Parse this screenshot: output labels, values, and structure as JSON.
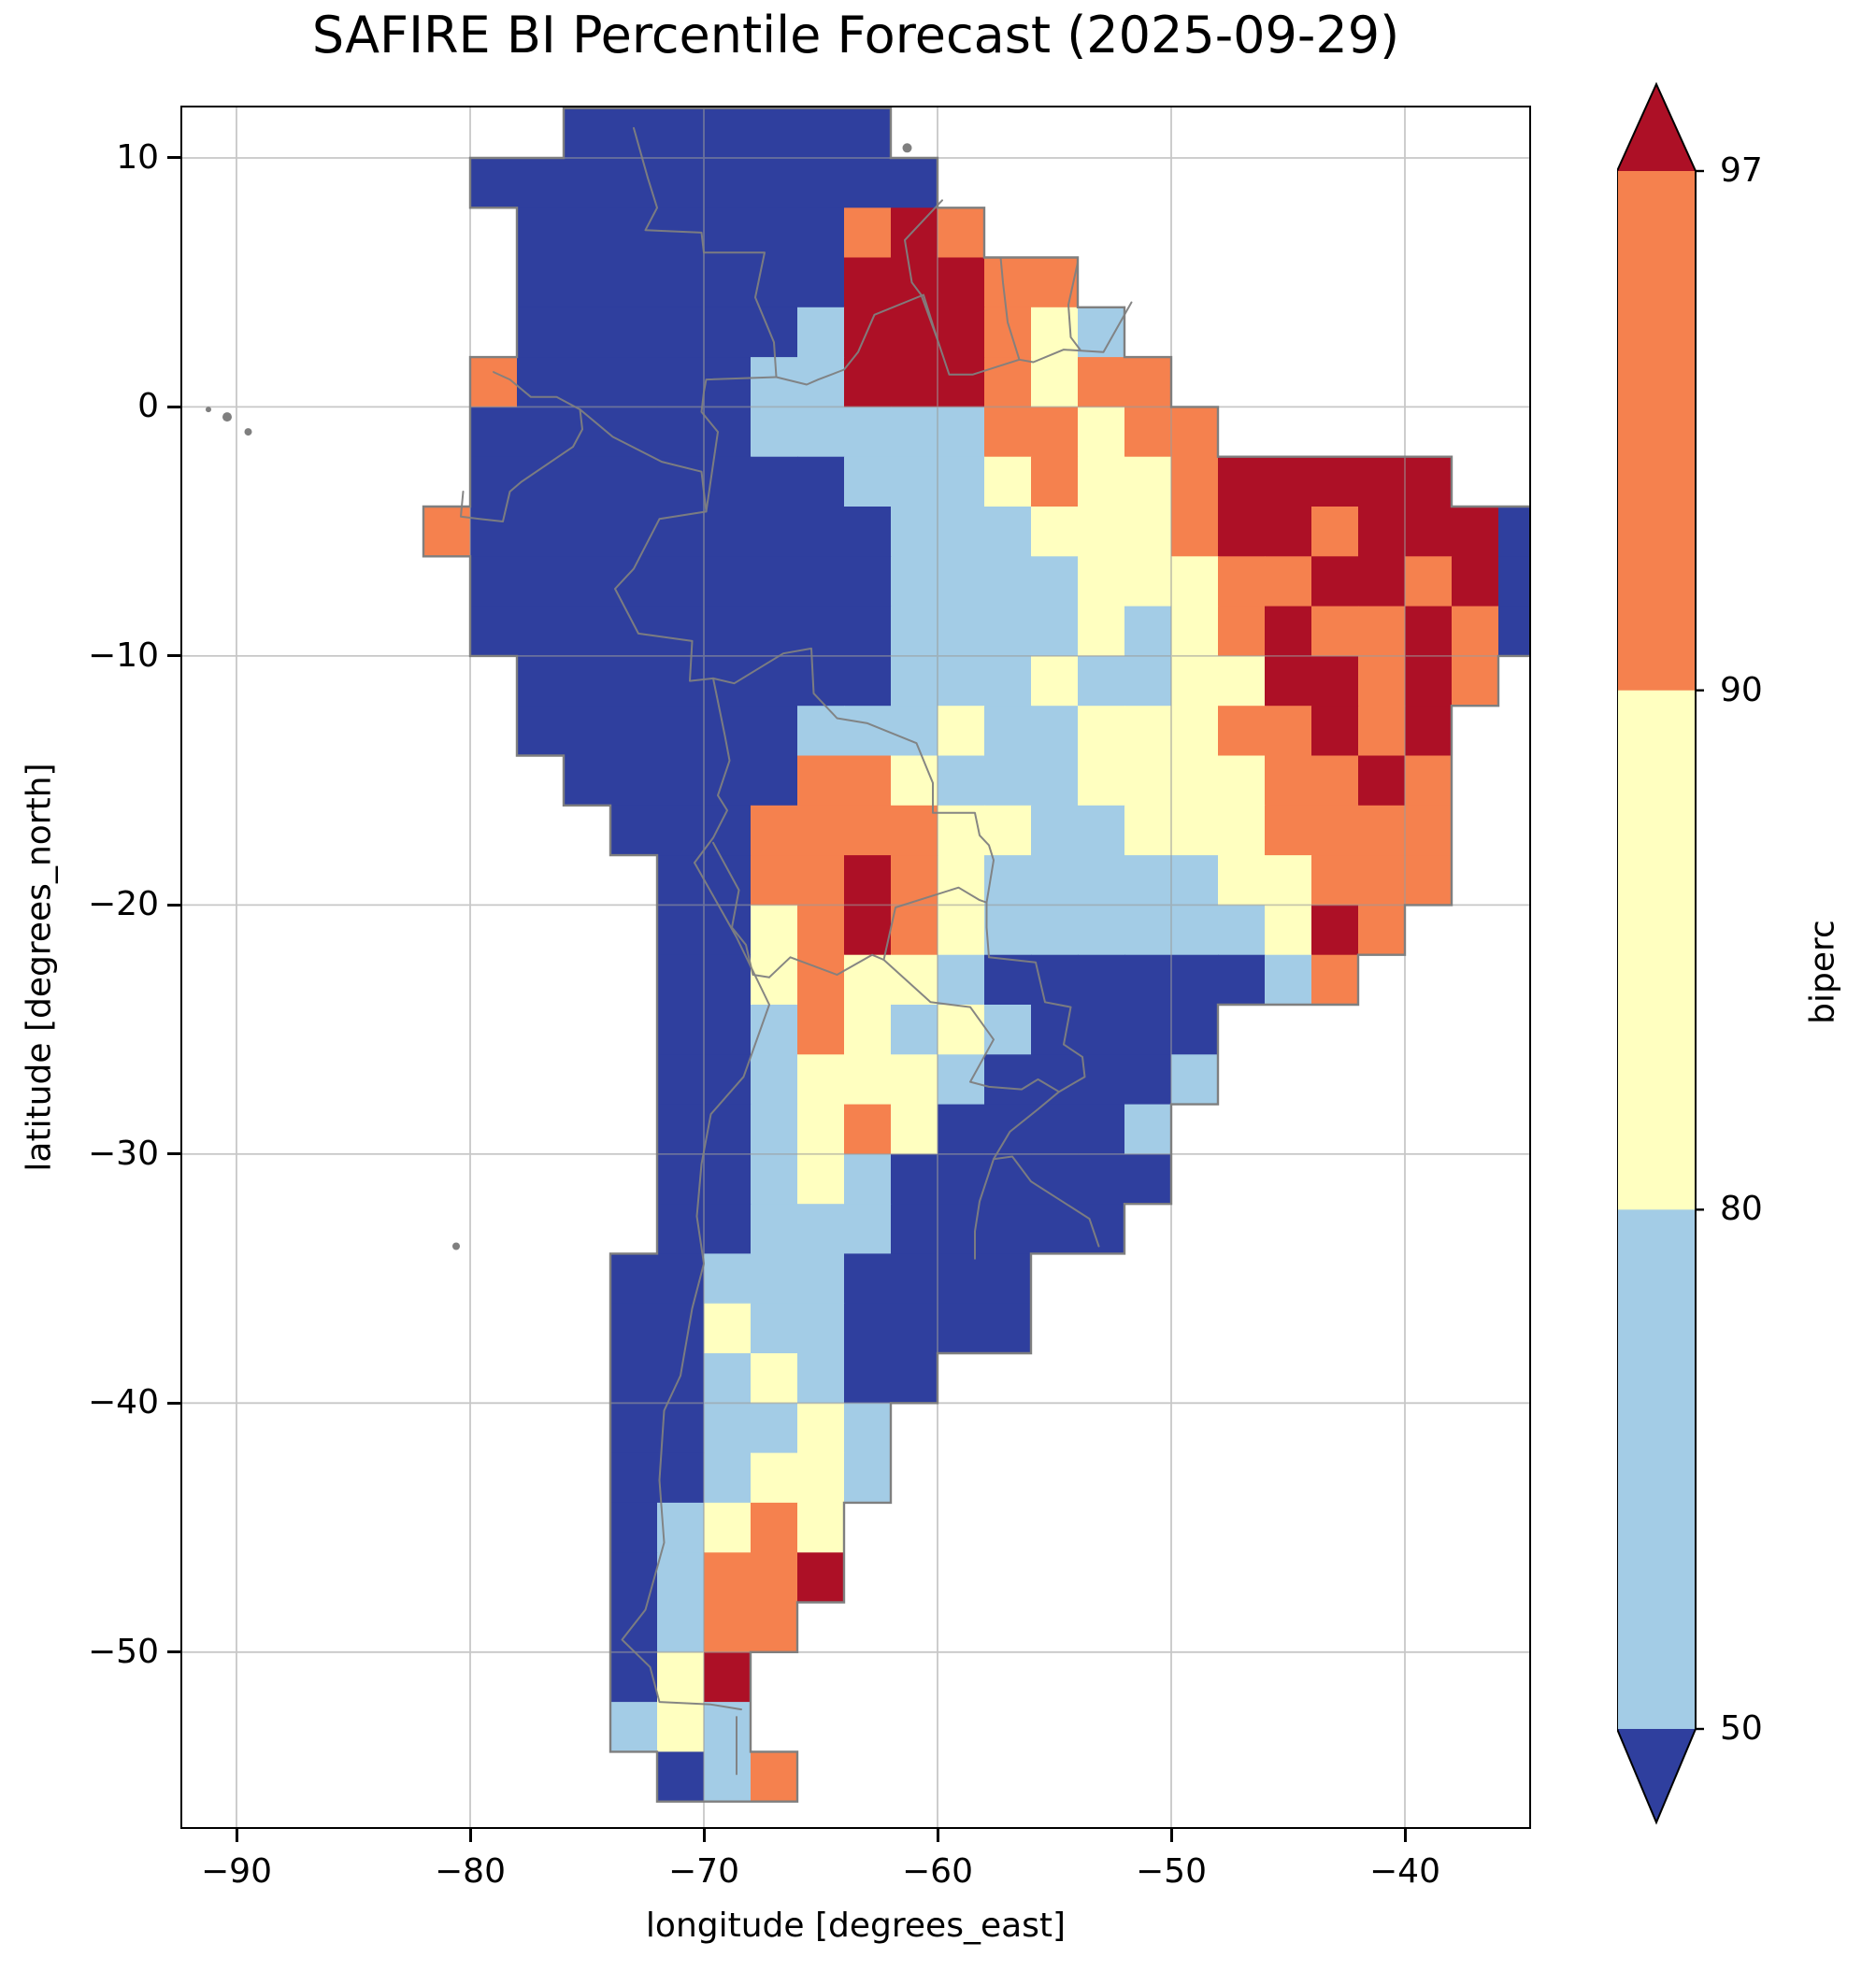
{
  "title": "SAFIRE BI Percentile Forecast (2025-09-29)",
  "axes": {
    "xlabel": "longitude [degrees_east]",
    "ylabel": "latitude [degrees_north]",
    "x_ticks": [
      {
        "label": "−90",
        "value": -90
      },
      {
        "label": "−80",
        "value": -80
      },
      {
        "label": "−70",
        "value": -70
      },
      {
        "label": "−60",
        "value": -60
      },
      {
        "label": "−50",
        "value": -50
      },
      {
        "label": "−40",
        "value": -40
      }
    ],
    "y_ticks": [
      {
        "label": "10",
        "value": 10
      },
      {
        "label": "0",
        "value": 0
      },
      {
        "label": "−10",
        "value": -10
      },
      {
        "label": "−20",
        "value": -20
      },
      {
        "label": "−30",
        "value": -30
      },
      {
        "label": "−40",
        "value": -40
      },
      {
        "label": "−50",
        "value": -50
      }
    ]
  },
  "colorbar": {
    "label": "biperc",
    "tick_labels": [
      "97",
      "90",
      "80",
      "50"
    ],
    "segments_top_to_bottom": [
      {
        "name": "above-97",
        "shape": "triangle-up",
        "color": "#ad1026"
      },
      {
        "name": "90-97",
        "shape": "rect",
        "color": "#f5814e"
      },
      {
        "name": "80-90",
        "shape": "rect",
        "color": "#ffffc0"
      },
      {
        "name": "50-80",
        "shape": "rect",
        "color": "#a3cce6"
      },
      {
        "name": "below-50",
        "shape": "triangle-down",
        "color": "#2f3f9e"
      }
    ]
  },
  "chart_data": {
    "type": "heatmap",
    "title": "SAFIRE BI Percentile Forecast (2025-09-29)",
    "date": "2025-09-29",
    "variable": "biperc",
    "xlabel": "longitude [degrees_east]",
    "ylabel": "latitude [degrees_north]",
    "x_range": [
      -92.4,
      -34.6
    ],
    "y_range": [
      -57.1,
      12.1
    ],
    "x_tick_values": [
      -90,
      -80,
      -70,
      -60,
      -50,
      -40
    ],
    "y_tick_values": [
      10,
      0,
      -10,
      -20,
      -30,
      -40,
      -50
    ],
    "color_levels": [
      50,
      80,
      90,
      97
    ],
    "grid_on": true,
    "legend_position": "right-colorbar",
    "bins": [
      {
        "key": "a",
        "range": "< 50",
        "color": "#2f3f9e"
      },
      {
        "key": "b",
        "range": "50-80",
        "color": "#a3cce6"
      },
      {
        "key": "c",
        "range": "80-90",
        "color": "#ffffc0"
      },
      {
        "key": "d",
        "range": "90-97",
        "color": "#f5814e"
      },
      {
        "key": "e",
        "range": "> 97",
        "color": "#ad1026"
      }
    ],
    "grid": {
      "cell_deg": 2,
      "origin_lon": -82,
      "origin_lat": 12,
      "no_data": ".",
      "rows": [
        "...aaaaaaa..............",
        ".aaaaaaaaaa.............",
        "..aaaaaaaded............",
        "..aaaaaaaeeedd..........",
        "..aaaaaabeeedcb.........",
        ".daaaaabbeeedcdd........",
        ".aaaaaabbbbbddcdd.......",
        ".aaaaaaaabbbcdccdeeeee..",
        "daaaaaaaaabbbcccdeedeeea",
        ".aaaaaaaaabbbbcccddeedea",
        ".aaaaaaaaabbbbcbcdeddeda",
        "..aaaaaaaabbbcbbcceeded.",
        "..aaaaaabbbcbbcccddede..",
        "...aaaaaddcbbbccccdded..",
        "....aaaddddccbbcccdddd..",
        ".....aaddedcbbbbbccddd..",
        ".....aacdedcbbbbbbced...",
        ".....aacdccbaaaaaabd....",
        ".....aabdcbcbaaaa.......",
        ".....aabcccbaaaab.......",
        ".....aabcdcaaaab........",
        ".....aabcbaaaaaa........",
        ".....aabbbaaaaa.........",
        "....aabbbaaaa...........",
        "....aacbbaaaa...........",
        "....aabcbaa.............",
        "....aabbcb..............",
        "....aabccb..............",
        "....abcdc...............",
        "....abdde...............",
        "....abdd................",
        "....ace.................",
        "....bcb.................",
        ".....abd................"
      ]
    }
  },
  "basemap": {
    "coast_color": "#7f7f7f",
    "border_color": "#808080",
    "gridline_color": "#9b9b9b",
    "borders": [
      [
        [
          -73,
          11.2
        ],
        [
          -72.4,
          9.2
        ],
        [
          -72,
          8
        ],
        [
          -72.5,
          7.1
        ],
        [
          -70.1,
          7
        ],
        [
          -70,
          6.2
        ],
        [
          -67.4,
          6.2
        ],
        [
          -67.8,
          4.4
        ],
        [
          -67,
          2.6
        ],
        [
          -66.9,
          1.2
        ]
      ],
      [
        [
          -59.8,
          8.3
        ],
        [
          -61.4,
          6.7
        ],
        [
          -61.1,
          5
        ],
        [
          -60.7,
          4.5
        ],
        [
          -60,
          2.7
        ]
      ],
      [
        [
          -57.3,
          6
        ],
        [
          -57.2,
          5
        ],
        [
          -57,
          3.4
        ],
        [
          -56.5,
          1.9
        ]
      ],
      [
        [
          -54,
          5.8
        ],
        [
          -54.4,
          4.1
        ],
        [
          -54.3,
          2.8
        ],
        [
          -53.9,
          2.3
        ]
      ],
      [
        [
          -66.9,
          1.2
        ],
        [
          -65.6,
          0.9
        ],
        [
          -65.1,
          1.1
        ],
        [
          -64,
          1.5
        ],
        [
          -63.4,
          2.2
        ],
        [
          -62.7,
          3.7
        ],
        [
          -60.6,
          4.5
        ],
        [
          -60,
          2.7
        ],
        [
          -59.5,
          1.3
        ],
        [
          -58.5,
          1.3
        ],
        [
          -56.5,
          1.9
        ],
        [
          -55.9,
          1.8
        ],
        [
          -54.6,
          2.3
        ],
        [
          -52.9,
          2.2
        ],
        [
          -51.7,
          4.2
        ]
      ],
      [
        [
          -66.9,
          1.2
        ],
        [
          -69.9,
          1.1
        ],
        [
          -70,
          0.6
        ],
        [
          -70.1,
          -0.2
        ],
        [
          -69.4,
          -1
        ],
        [
          -69.9,
          -4.2
        ],
        [
          -71.9,
          -4.5
        ],
        [
          -73,
          -6.5
        ],
        [
          -73.8,
          -7.3
        ],
        [
          -72.8,
          -9.1
        ],
        [
          -70.5,
          -9.4
        ],
        [
          -70.6,
          -11
        ],
        [
          -69.6,
          -10.9
        ]
      ],
      [
        [
          -69.6,
          -10.9
        ],
        [
          -68.7,
          -11.1
        ],
        [
          -66.6,
          -9.9
        ],
        [
          -65.4,
          -9.7
        ],
        [
          -65.3,
          -11.5
        ],
        [
          -64.3,
          -12.5
        ],
        [
          -63,
          -12.7
        ],
        [
          -60.9,
          -13.5
        ],
        [
          -60.2,
          -15.1
        ],
        [
          -60.2,
          -16.3
        ],
        [
          -58.4,
          -16.3
        ],
        [
          -58.2,
          -17.2
        ],
        [
          -57.8,
          -17.6
        ],
        [
          -57.6,
          -18.2
        ],
        [
          -57.9,
          -19.9
        ],
        [
          -57.9,
          -20.9
        ],
        [
          -57.8,
          -22.1
        ]
      ],
      [
        [
          -57.8,
          -22.1
        ],
        [
          -55.8,
          -22.3
        ],
        [
          -55.4,
          -23.9
        ],
        [
          -54.3,
          -24.1
        ],
        [
          -54.6,
          -25.6
        ],
        [
          -53.8,
          -26.1
        ],
        [
          -53.7,
          -26.9
        ],
        [
          -54.8,
          -27.5
        ],
        [
          -55.7,
          -28.2
        ],
        [
          -56.9,
          -29.1
        ],
        [
          -57.6,
          -30.2
        ],
        [
          -56.8,
          -30.1
        ],
        [
          -56,
          -31.1
        ],
        [
          -53.5,
          -32.6
        ],
        [
          -53.1,
          -33.7
        ]
      ],
      [
        [
          -80.3,
          -3.4
        ],
        [
          -80.4,
          -4.4
        ],
        [
          -79.6,
          -4.5
        ],
        [
          -78.6,
          -4.6
        ],
        [
          -78.3,
          -3.4
        ],
        [
          -77.8,
          -3
        ],
        [
          -75.6,
          -1.6
        ],
        [
          -75.2,
          -0.9
        ],
        [
          -75.3,
          -0.1
        ]
      ],
      [
        [
          -79,
          1.4
        ],
        [
          -78.3,
          1.1
        ],
        [
          -77.4,
          0.4
        ],
        [
          -76.3,
          0.4
        ],
        [
          -75.3,
          -0.1
        ]
      ],
      [
        [
          -75.3,
          -0.1
        ],
        [
          -73.9,
          -1.2
        ],
        [
          -71.8,
          -2.2
        ],
        [
          -70.1,
          -2.6
        ],
        [
          -69.9,
          -4.2
        ]
      ],
      [
        [
          -69.6,
          -10.9
        ],
        [
          -69.1,
          -13.2
        ],
        [
          -68.9,
          -14.2
        ],
        [
          -69.4,
          -15.6
        ],
        [
          -69,
          -16.2
        ],
        [
          -69.6,
          -17.3
        ],
        [
          -70.4,
          -18.3
        ]
      ],
      [
        [
          -69.6,
          -17.5
        ],
        [
          -68.5,
          -19.4
        ],
        [
          -68.8,
          -20.9
        ],
        [
          -68.2,
          -21.6
        ],
        [
          -67.9,
          -22.8
        ],
        [
          -67.2,
          -22.9
        ]
      ],
      [
        [
          -67.2,
          -22.9
        ],
        [
          -66.3,
          -22.1
        ],
        [
          -64.3,
          -22.8
        ],
        [
          -62.8,
          -22
        ],
        [
          -62.3,
          -22.2
        ]
      ],
      [
        [
          -62.3,
          -22.2
        ],
        [
          -61.8,
          -20.1
        ],
        [
          -59.1,
          -19.3
        ],
        [
          -58.2,
          -19.8
        ],
        [
          -57.9,
          -19.9
        ]
      ],
      [
        [
          -62.3,
          -22.2
        ],
        [
          -60.3,
          -23.9
        ],
        [
          -58.6,
          -24.1
        ],
        [
          -57.6,
          -25.4
        ],
        [
          -58.6,
          -27.1
        ],
        [
          -57.8,
          -27.3
        ],
        [
          -56.4,
          -27.4
        ],
        [
          -55.7,
          -27
        ],
        [
          -54.8,
          -27.5
        ]
      ],
      [
        [
          -70.4,
          -18.3
        ],
        [
          -68.6,
          -21.3
        ],
        [
          -67.2,
          -24
        ],
        [
          -68.3,
          -26.9
        ],
        [
          -69.7,
          -28.4
        ],
        [
          -70.1,
          -30.4
        ],
        [
          -70.3,
          -32.5
        ],
        [
          -70,
          -34.4
        ],
        [
          -70.5,
          -36.2
        ],
        [
          -71,
          -38.9
        ],
        [
          -71.7,
          -40.3
        ],
        [
          -71.9,
          -43.1
        ],
        [
          -71.7,
          -45.6
        ],
        [
          -72.5,
          -48.3
        ],
        [
          -73.5,
          -49.5
        ],
        [
          -72.3,
          -50.6
        ],
        [
          -71.9,
          -52
        ],
        [
          -69.7,
          -52.1
        ],
        [
          -68.4,
          -52.3
        ]
      ],
      [
        [
          -57.6,
          -30.2
        ],
        [
          -58.2,
          -31.9
        ],
        [
          -58.4,
          -33.1
        ],
        [
          -58.4,
          -34.2
        ]
      ],
      [
        [
          -68.6,
          -52.6
        ],
        [
          -68.6,
          -54.9
        ]
      ]
    ],
    "islands": [
      {
        "lon": -90.4,
        "lat": -0.4,
        "r": 5
      },
      {
        "lon": -89.5,
        "lat": -1.0,
        "r": 4
      },
      {
        "lon": -91.2,
        "lat": -0.1,
        "r": 3
      },
      {
        "lon": -61.3,
        "lat": 10.4,
        "r": 5
      },
      {
        "lon": -80.6,
        "lat": -33.7,
        "r": 4
      }
    ]
  }
}
